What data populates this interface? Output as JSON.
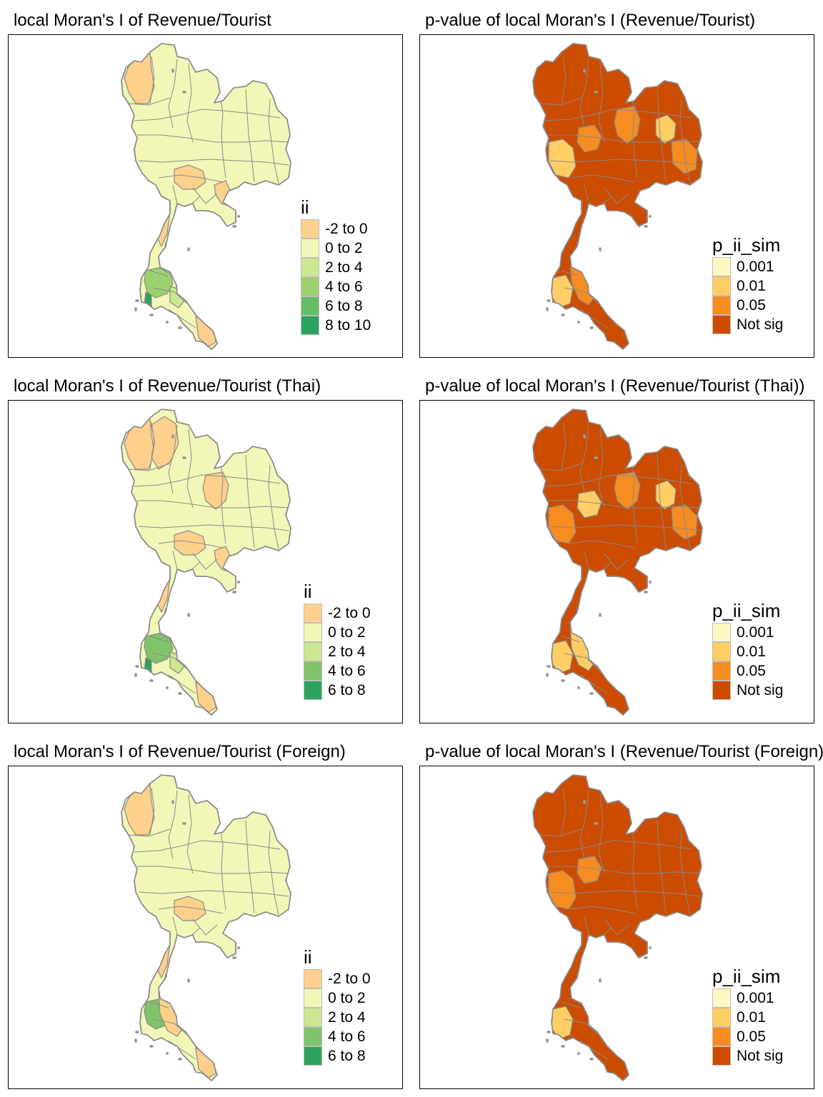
{
  "figure": {
    "background": "#ffffff",
    "border_color": "#000000",
    "province_border_color": "#8a8a8a"
  },
  "palettes": {
    "ii_classes": [
      "#fdd08c",
      "#f2f7b8",
      "#cbe791",
      "#9dd16e",
      "#66bd63",
      "#2ca25f"
    ],
    "p_classes": [
      "#fff7c2",
      "#fece65",
      "#f78c20",
      "#cc4c02"
    ]
  },
  "panels": [
    {
      "id": "ii-all",
      "title": "local Moran's I of Revenue/Tourist",
      "variable": "ii",
      "legend": {
        "title": "ii",
        "items": [
          {
            "label": "-2 to 0",
            "color": "#fdd08c"
          },
          {
            "label": "0 to 2",
            "color": "#f2f7b8"
          },
          {
            "label": "2 to 4",
            "color": "#cbe791"
          },
          {
            "label": "4 to 6",
            "color": "#9dd16e"
          },
          {
            "label": "6 to 8",
            "color": "#66bd63"
          },
          {
            "label": "8 to 10",
            "color": "#2ca25f"
          }
        ]
      },
      "map": {
        "base_color": "#f2f7b8",
        "highlights": [
          {
            "region": "north-west",
            "color": "#fdd08c"
          },
          {
            "region": "central",
            "color": "#fdd08c"
          },
          {
            "region": "east",
            "color": "#fdd08c"
          },
          {
            "region": "isthmus",
            "color": "#fdd08c"
          },
          {
            "region": "phuket-phangnga",
            "color": "#9dd16e"
          },
          {
            "region": "krabi",
            "color": "#cbe791"
          },
          {
            "region": "phuket-island",
            "color": "#2ca25f"
          },
          {
            "region": "deep-south",
            "color": "#fdd08c"
          }
        ]
      }
    },
    {
      "id": "p-all",
      "title": "p-value of local Moran's I (Revenue/Tourist)",
      "variable": "p_ii_sim",
      "legend": {
        "title": "p_ii_sim",
        "items": [
          {
            "label": "0.001",
            "color": "#fff7c2"
          },
          {
            "label": "0.01",
            "color": "#fece65"
          },
          {
            "label": "0.05",
            "color": "#f78c20"
          },
          {
            "label": "Not sig",
            "color": "#cc4c02"
          }
        ]
      },
      "map": {
        "base_color": "#cc4c02",
        "highlights": [
          {
            "region": "north-east-center",
            "color": "#f78c20"
          },
          {
            "region": "north-east-east",
            "color": "#fece65"
          },
          {
            "region": "north-east-south",
            "color": "#f78c20"
          },
          {
            "region": "west",
            "color": "#fece65"
          },
          {
            "region": "lower-north",
            "color": "#f78c20"
          },
          {
            "region": "andaman",
            "color": "#fece65"
          },
          {
            "region": "gulf-south",
            "color": "#f78c20"
          }
        ]
      }
    },
    {
      "id": "ii-thai",
      "title": "local Moran's I of Revenue/Tourist (Thai)",
      "variable": "ii",
      "legend": {
        "title": "ii",
        "items": [
          {
            "label": "-2 to 0",
            "color": "#fdd08c"
          },
          {
            "label": "0 to 2",
            "color": "#f2f7b8"
          },
          {
            "label": "2 to 4",
            "color": "#cbe791"
          },
          {
            "label": "4 to 6",
            "color": "#7fc46a"
          },
          {
            "label": "6 to 8",
            "color": "#2ca25f"
          }
        ]
      },
      "map": {
        "base_color": "#f2f7b8",
        "highlights": [
          {
            "region": "north-west",
            "color": "#fdd08c"
          },
          {
            "region": "north",
            "color": "#fdd08c"
          },
          {
            "region": "north-east-center",
            "color": "#fdd08c"
          },
          {
            "region": "central",
            "color": "#fdd08c"
          },
          {
            "region": "east",
            "color": "#fdd08c"
          },
          {
            "region": "isthmus",
            "color": "#fdd08c"
          },
          {
            "region": "phuket-phangnga",
            "color": "#7fc46a"
          },
          {
            "region": "krabi",
            "color": "#cbe791"
          },
          {
            "region": "phuket-island",
            "color": "#2ca25f"
          },
          {
            "region": "deep-south",
            "color": "#fdd08c"
          }
        ]
      }
    },
    {
      "id": "p-thai",
      "title": "p-value of local Moran's I (Revenue/Tourist (Thai))",
      "variable": "p_ii_sim",
      "legend": {
        "title": "p_ii_sim",
        "items": [
          {
            "label": "0.001",
            "color": "#fff7c2"
          },
          {
            "label": "0.01",
            "color": "#fece65"
          },
          {
            "label": "0.05",
            "color": "#f78c20"
          },
          {
            "label": "Not sig",
            "color": "#cc4c02"
          }
        ]
      },
      "map": {
        "base_color": "#cc4c02",
        "highlights": [
          {
            "region": "north-east-center",
            "color": "#f78c20"
          },
          {
            "region": "north-east-east",
            "color": "#fece65"
          },
          {
            "region": "north-east-south",
            "color": "#f78c20"
          },
          {
            "region": "west",
            "color": "#f78c20"
          },
          {
            "region": "lower-north",
            "color": "#fece65"
          },
          {
            "region": "andaman",
            "color": "#fece65"
          },
          {
            "region": "gulf-south",
            "color": "#fece65"
          }
        ]
      }
    },
    {
      "id": "ii-foreign",
      "title": "local Moran's I of Revenue/Tourist (Foreign)",
      "variable": "ii",
      "legend": {
        "title": "ii",
        "items": [
          {
            "label": "-2 to 0",
            "color": "#fdd08c"
          },
          {
            "label": "0 to 2",
            "color": "#f2f7b8"
          },
          {
            "label": "2 to 4",
            "color": "#cbe791"
          },
          {
            "label": "4 to 6",
            "color": "#7fc46a"
          },
          {
            "label": "6 to 8",
            "color": "#2ca25f"
          }
        ]
      },
      "map": {
        "base_color": "#f2f7b8",
        "highlights": [
          {
            "region": "north-west",
            "color": "#fdd08c"
          },
          {
            "region": "central",
            "color": "#fdd08c"
          },
          {
            "region": "isthmus",
            "color": "#fdd08c"
          },
          {
            "region": "phuket-phangnga",
            "color": "#7fc46a"
          },
          {
            "region": "deep-south",
            "color": "#fdd08c"
          },
          {
            "region": "gulf-south",
            "color": "#fdd08c"
          }
        ]
      }
    },
    {
      "id": "p-foreign",
      "title": "p-value of local Moran's I (Revenue/Tourist (Foreign))",
      "variable": "p_ii_sim",
      "legend": {
        "title": "p_ii_sim",
        "items": [
          {
            "label": "0.001",
            "color": "#fff7c2"
          },
          {
            "label": "0.01",
            "color": "#fece65"
          },
          {
            "label": "0.05",
            "color": "#f78c20"
          },
          {
            "label": "Not sig",
            "color": "#cc4c02"
          }
        ]
      },
      "map": {
        "base_color": "#cc4c02",
        "highlights": [
          {
            "region": "west",
            "color": "#f78c20"
          },
          {
            "region": "lower-north",
            "color": "#f78c20"
          },
          {
            "region": "andaman",
            "color": "#fece65"
          }
        ]
      }
    }
  ]
}
